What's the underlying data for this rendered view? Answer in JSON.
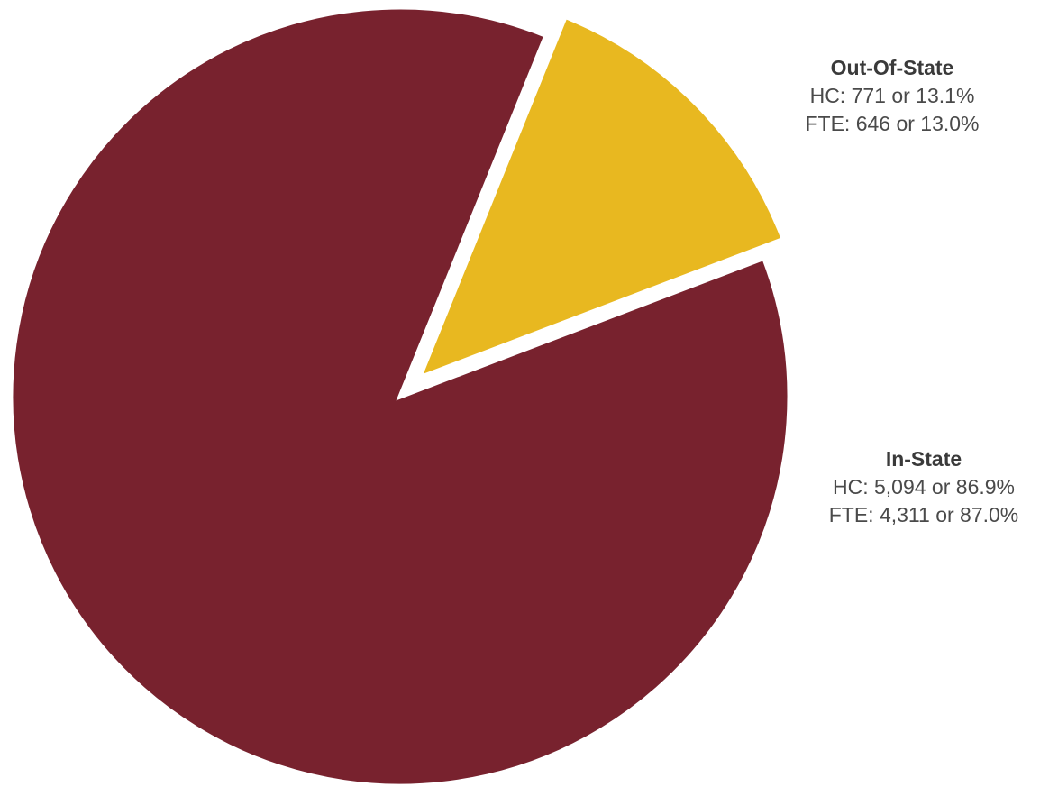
{
  "chart_data": {
    "type": "pie",
    "title": "",
    "slices": [
      {
        "name": "Out-Of-State",
        "hc_value": 771,
        "hc_percent": 13.1,
        "fte_value": 646,
        "fte_percent": 13.0,
        "hc_text": "HC: 771 or 13.1%",
        "fte_text": "FTE: 646 or 13.0%",
        "color": "#E8B820",
        "exploded": true
      },
      {
        "name": "In-State",
        "hc_value": 5094,
        "hc_percent": 86.9,
        "fte_value": 4311,
        "fte_percent": 87.0,
        "hc_text": "HC: 5,094 or 86.9%",
        "fte_text": "FTE: 4,311 or 87.0%",
        "color": "#78222E",
        "exploded": false
      }
    ],
    "slice_border_color": "#FFFFFF",
    "start_angle_deg": 22,
    "direction": "clockwise"
  }
}
